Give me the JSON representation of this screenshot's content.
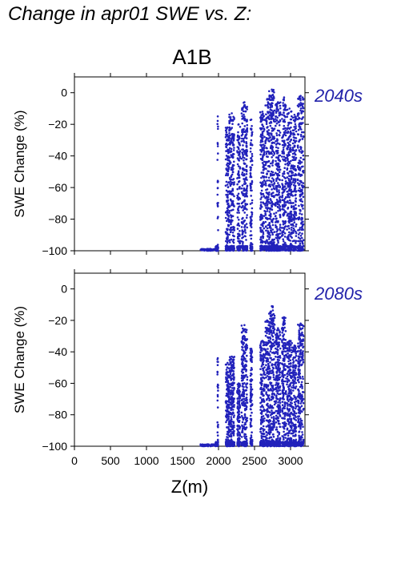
{
  "title": "Change in apr01 SWE vs. Z:",
  "subtitle": "A1B",
  "colors": {
    "points": "#2222bb",
    "period_text": "#2222aa"
  },
  "chart_data": [
    {
      "type": "scatter",
      "period": "2040s",
      "ylabel": "SWE Change (%)",
      "xlabel": "",
      "xlim": [
        0,
        3200
      ],
      "ylim": [
        -100,
        10
      ],
      "xticks": [
        0,
        500,
        1000,
        1500,
        2000,
        2500,
        3000
      ],
      "yticks": [
        0,
        -20,
        -40,
        -60,
        -80,
        -100
      ],
      "yticklabels": [
        "0",
        "−20",
        "−40",
        "−60",
        "−80",
        "−100"
      ],
      "clusters": [
        {
          "x": [
            1750,
            1960
          ],
          "ymax": -100
        },
        {
          "x": [
            1960,
            1985
          ],
          "ymax": -98
        },
        {
          "x": [
            1985,
            1995
          ],
          "ymax": -15
        },
        {
          "x": [
            2100,
            2150
          ],
          "ymax": -22
        },
        {
          "x": [
            2150,
            2220
          ],
          "ymax": -13
        },
        {
          "x": [
            2260,
            2300
          ],
          "ymax": -20
        },
        {
          "x": [
            2320,
            2400
          ],
          "ymax": -6
        },
        {
          "x": [
            2440,
            2470
          ],
          "ymax": -17
        },
        {
          "x": [
            2580,
            2640
          ],
          "ymax": -12
        },
        {
          "x": [
            2650,
            2700
          ],
          "ymax": -4
        },
        {
          "x": [
            2700,
            2780
          ],
          "ymax": 2
        },
        {
          "x": [
            2790,
            2860
          ],
          "ymax": -6
        },
        {
          "x": [
            2880,
            2940
          ],
          "ymax": -3
        },
        {
          "x": [
            2950,
            3020
          ],
          "ymax": -10
        },
        {
          "x": [
            3030,
            3080
          ],
          "ymax": -14
        },
        {
          "x": [
            3100,
            3180
          ],
          "ymax": -2
        }
      ]
    },
    {
      "type": "scatter",
      "period": "2080s",
      "ylabel": "SWE Change (%)",
      "xlabel": "Z(m)",
      "xlim": [
        0,
        3200
      ],
      "ylim": [
        -100,
        10
      ],
      "xticks": [
        0,
        500,
        1000,
        1500,
        2000,
        2500,
        3000
      ],
      "xticklabels": [
        "0",
        "500",
        "1000",
        "1500",
        "2000",
        "2500",
        "3000"
      ],
      "yticks": [
        0,
        -20,
        -40,
        -60,
        -80,
        -100
      ],
      "yticklabels": [
        "0",
        "−20",
        "−40",
        "−60",
        "−80",
        "−100"
      ],
      "clusters": [
        {
          "x": [
            1750,
            1960
          ],
          "ymax": -100
        },
        {
          "x": [
            1960,
            1985
          ],
          "ymax": -98
        },
        {
          "x": [
            1985,
            1995
          ],
          "ymax": -44
        },
        {
          "x": [
            2100,
            2150
          ],
          "ymax": -47
        },
        {
          "x": [
            2150,
            2220
          ],
          "ymax": -43
        },
        {
          "x": [
            2260,
            2300
          ],
          "ymax": -60
        },
        {
          "x": [
            2320,
            2400
          ],
          "ymax": -23
        },
        {
          "x": [
            2440,
            2470
          ],
          "ymax": -38
        },
        {
          "x": [
            2580,
            2640
          ],
          "ymax": -33
        },
        {
          "x": [
            2650,
            2700
          ],
          "ymax": -20
        },
        {
          "x": [
            2700,
            2780
          ],
          "ymax": -11
        },
        {
          "x": [
            2790,
            2860
          ],
          "ymax": -25
        },
        {
          "x": [
            2880,
            2940
          ],
          "ymax": -18
        },
        {
          "x": [
            2950,
            3020
          ],
          "ymax": -33
        },
        {
          "x": [
            3030,
            3080
          ],
          "ymax": -36
        },
        {
          "x": [
            3100,
            3180
          ],
          "ymax": -22
        }
      ]
    }
  ]
}
